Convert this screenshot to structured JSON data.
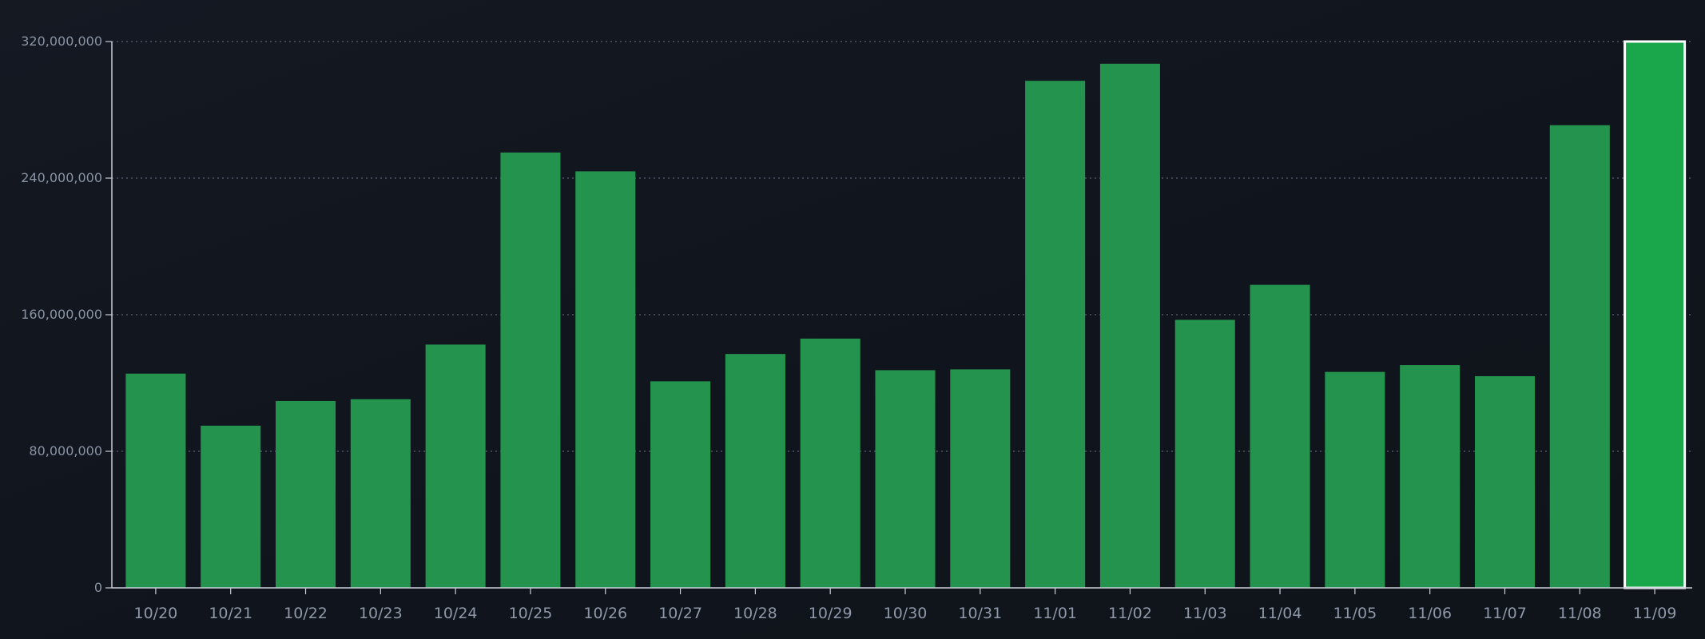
{
  "chart_data": {
    "type": "bar",
    "categories": [
      "10/20",
      "10/21",
      "10/22",
      "10/23",
      "10/24",
      "10/25",
      "10/26",
      "10/27",
      "10/28",
      "10/29",
      "10/30",
      "10/31",
      "11/01",
      "11/02",
      "11/03",
      "11/04",
      "11/05",
      "11/06",
      "11/07",
      "11/08",
      "11/09"
    ],
    "values": [
      125500000,
      95000000,
      109500000,
      110500000,
      142500000,
      255000000,
      244000000,
      121000000,
      137000000,
      146000000,
      127500000,
      128000000,
      297000000,
      307000000,
      157000000,
      177500000,
      126500000,
      130500000,
      124000000,
      271000000,
      320000000
    ],
    "yticks": [
      "0",
      "80,000,000",
      "160,000,000",
      "240,000,000",
      "320,000,000"
    ],
    "ylim": [
      0,
      320000000
    ],
    "highlighted_category": "11/09",
    "grid": true,
    "title": "",
    "xlabel": "",
    "ylabel": "",
    "colors": {
      "bar": "#23934d",
      "highlight_bar": "#1aa64b",
      "highlight_outline": "#ffffff",
      "grid": "#5a6272",
      "axis": "#c8ced8"
    }
  }
}
